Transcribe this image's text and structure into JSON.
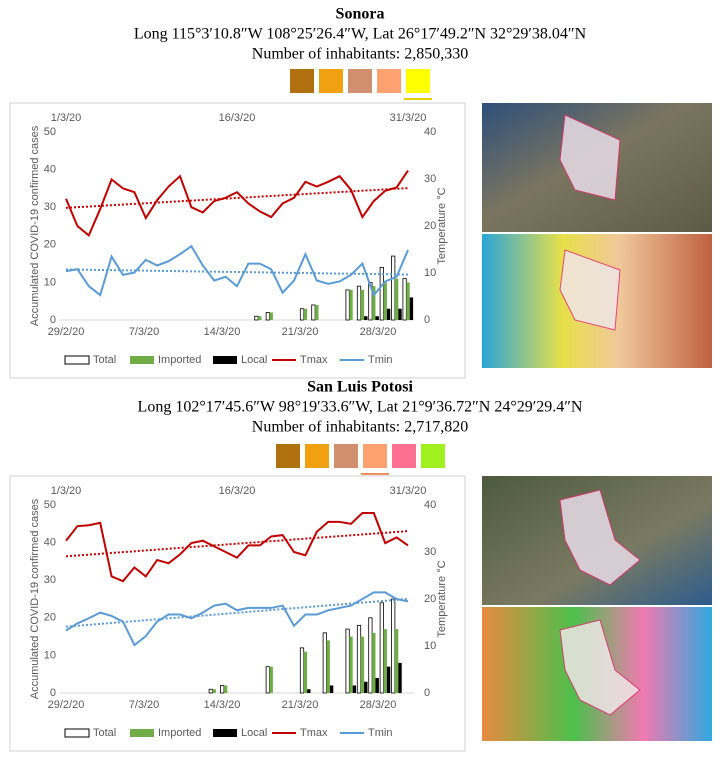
{
  "regions": [
    {
      "title": "Sonora",
      "coordinates": "Long 115°3′10.8″W 108°25′26.4″W, Lat 26°17′49.2″N 32°29′38.04″N",
      "inhabitants": "Number of inhabitants: 2,850,330"
    },
    {
      "title": "San Luis Potosi",
      "coordinates": "Long 102°17′45.6″W 98°19′33.6″W, Lat 21°9′36.72″N 24°29′29.4″N",
      "inhabitants": "Number of inhabitants: 2,717,820"
    }
  ],
  "chart_data": [
    {
      "type": "bar-line",
      "y_label": "Accumulated COVID-19 confirmed cases",
      "y2_label": "Temperature °C",
      "categories": [
        "1/3/20",
        null,
        null,
        null,
        null,
        null,
        null,
        null,
        null,
        null,
        null,
        null,
        null,
        null,
        null,
        "16/3/20",
        null,
        null,
        null,
        null,
        null,
        null,
        null,
        null,
        null,
        null,
        null,
        null,
        null,
        null,
        "31/3/20"
      ],
      "x_bottom_labels": [
        "29/2/20",
        "7/3/20",
        "14/3/20",
        "21/3/20",
        "28/3/20"
      ],
      "ylim": [
        0,
        50
      ],
      "yticks": [
        0,
        10,
        20,
        30,
        40,
        50
      ],
      "y2lim": [
        0,
        40
      ],
      "y2ticks": [
        0,
        10,
        20,
        30,
        40
      ],
      "series": [
        {
          "name": "Total",
          "type": "bar",
          "hollow": true,
          "color": "#000000",
          "values": [
            0,
            0,
            0,
            0,
            0,
            0,
            0,
            0,
            0,
            0,
            0,
            0,
            0,
            0,
            0,
            0,
            0,
            1,
            2,
            0,
            0,
            3,
            4,
            0,
            0,
            8,
            9,
            10,
            14,
            17,
            11
          ]
        },
        {
          "name": "Imported",
          "type": "bar",
          "color": "#70ad47",
          "values": [
            0,
            0,
            0,
            0,
            0,
            0,
            0,
            0,
            0,
            0,
            0,
            0,
            0,
            0,
            0,
            0,
            0,
            1,
            2,
            0,
            0,
            3,
            4,
            0,
            0,
            8,
            8,
            9,
            10,
            11,
            10
          ]
        },
        {
          "name": "Local",
          "type": "bar",
          "color": "#000000",
          "values": [
            0,
            0,
            0,
            0,
            0,
            0,
            0,
            0,
            0,
            0,
            0,
            0,
            0,
            0,
            0,
            0,
            0,
            0,
            0,
            0,
            0,
            0,
            0,
            0,
            0,
            0,
            1,
            1,
            3,
            3,
            6
          ]
        },
        {
          "name": "Tmax",
          "type": "line",
          "axis": "y2",
          "trendline": true,
          "color": "#c00000",
          "values": [
            25.8,
            20,
            18,
            23.6,
            29.9,
            28,
            27.2,
            21.7,
            25.5,
            28.4,
            30.6,
            24,
            22.9,
            25.3,
            26,
            27.2,
            24.8,
            23.1,
            21.9,
            24.8,
            26,
            29.4,
            28.4,
            29.4,
            30.6,
            27.7,
            21.9,
            25.3,
            27.5,
            28.2,
            31.8
          ]
        },
        {
          "name": "Tmin",
          "type": "line",
          "axis": "y2",
          "trendline": true,
          "color": "#5b9bd5",
          "values": [
            10.4,
            10.8,
            7.2,
            5.3,
            13.5,
            9.6,
            10.1,
            12.8,
            11.6,
            12.5,
            14,
            15.7,
            11.6,
            8.4,
            9.2,
            7.2,
            12,
            12,
            10.8,
            5.8,
            8.4,
            14,
            8.4,
            7.7,
            8.2,
            9.6,
            12,
            5.3,
            8.2,
            9.2,
            14.9
          ]
        }
      ]
    },
    {
      "type": "bar-line",
      "y_label": "Accumulated COVID-19 confirmed cases",
      "y2_label": "Temperature °C",
      "categories": [
        "1/3/20",
        null,
        null,
        null,
        null,
        null,
        null,
        null,
        null,
        null,
        null,
        null,
        null,
        null,
        null,
        "16/3/20",
        null,
        null,
        null,
        null,
        null,
        null,
        null,
        null,
        null,
        null,
        null,
        null,
        null,
        null,
        "31/3/20"
      ],
      "x_bottom_labels": [
        "29/2/20",
        "7/3/20",
        "14/3/20",
        "21/3/20",
        "28/3/20"
      ],
      "ylim": [
        0,
        50
      ],
      "yticks": [
        0,
        10,
        20,
        30,
        40,
        50
      ],
      "y2lim": [
        0,
        40
      ],
      "y2ticks": [
        0,
        10,
        20,
        30,
        40
      ],
      "series": [
        {
          "name": "Total",
          "type": "bar",
          "hollow": true,
          "color": "#000000",
          "values": [
            0,
            0,
            0,
            0,
            0,
            0,
            0,
            0,
            0,
            0,
            0,
            0,
            0,
            1,
            2,
            0,
            0,
            0,
            7,
            0,
            0,
            12,
            0,
            16,
            0,
            17,
            18,
            20,
            24,
            25,
            0
          ]
        },
        {
          "name": "Imported",
          "type": "bar",
          "color": "#70ad47",
          "values": [
            0,
            0,
            0,
            0,
            0,
            0,
            0,
            0,
            0,
            0,
            0,
            0,
            0,
            1,
            2,
            0,
            0,
            0,
            7,
            0,
            0,
            11,
            0,
            14,
            0,
            15,
            15,
            16,
            17,
            17,
            0
          ]
        },
        {
          "name": "Local",
          "type": "bar",
          "color": "#000000",
          "values": [
            0,
            0,
            0,
            0,
            0,
            0,
            0,
            0,
            0,
            0,
            0,
            0,
            0,
            0,
            0,
            0,
            0,
            0,
            0,
            0,
            0,
            1,
            0,
            2,
            0,
            2,
            3,
            4,
            7,
            8,
            0
          ]
        },
        {
          "name": "Tmax",
          "type": "line",
          "axis": "y2",
          "trendline": true,
          "color": "#c00000",
          "values": [
            32.4,
            35.5,
            35.7,
            36.2,
            24.8,
            23.8,
            26.7,
            24.8,
            28.3,
            27.6,
            29.5,
            31.9,
            32.4,
            31.2,
            30,
            28.8,
            31.4,
            31.4,
            33.3,
            33.6,
            30,
            29.3,
            34.3,
            36.4,
            36.4,
            36,
            38.3,
            38.3,
            31.9,
            33.1,
            31.4
          ]
        },
        {
          "name": "Tmin",
          "type": "line",
          "axis": "y2",
          "trendline": true,
          "color": "#5b9bd5",
          "values": [
            13.3,
            14.8,
            15.9,
            17.1,
            16.4,
            15.2,
            10.2,
            12.1,
            15.2,
            16.7,
            16.7,
            15.9,
            17.1,
            18.6,
            19,
            17.6,
            18.1,
            18.1,
            18.1,
            18.6,
            14.3,
            16.7,
            16.7,
            17.6,
            18.1,
            18.6,
            20,
            21.4,
            21.4,
            20,
            19.5
          ]
        }
      ]
    }
  ]
}
